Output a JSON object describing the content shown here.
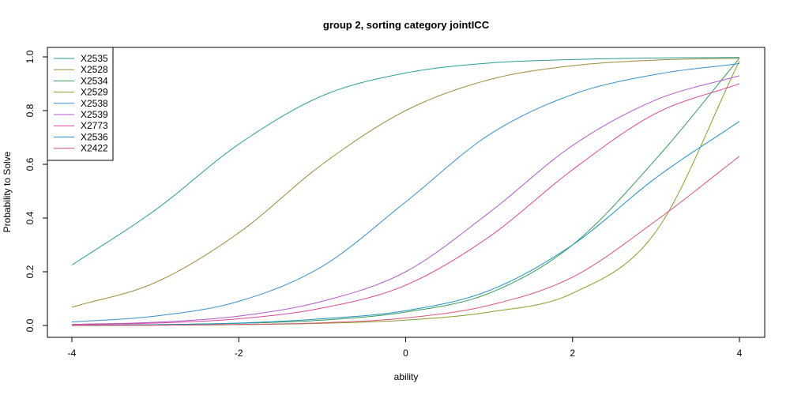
{
  "chart_data": {
    "type": "line",
    "title": "group 2, sorting category jointICC",
    "xlabel": "ability",
    "ylabel": "Probability to Solve",
    "xlim": [
      -4,
      4
    ],
    "ylim": [
      0,
      1
    ],
    "xticks": [
      -4,
      -2,
      0,
      2,
      4
    ],
    "xtick_labels": [
      "-4",
      "-2",
      "0",
      "2",
      "4"
    ],
    "yticks": [
      0,
      0.2,
      0.4,
      0.6,
      0.8,
      1
    ],
    "ytick_labels": [
      "0.0",
      "0.2",
      "0.4",
      "0.6",
      "0.8",
      "1.0"
    ],
    "grid": false,
    "legend_position": "top-left",
    "x": [
      -4,
      -3,
      -2,
      -1,
      0,
      1,
      2,
      3,
      4
    ],
    "series": [
      {
        "name": "X2535",
        "color": "#2A9D8F",
        "values": [
          0.225,
          0.43,
          0.675,
          0.855,
          0.94,
          0.977,
          0.99,
          0.996,
          0.998
        ]
      },
      {
        "name": "X2528",
        "color": "#9C8A3C",
        "values": [
          0.068,
          0.16,
          0.345,
          0.6,
          0.8,
          0.915,
          0.967,
          0.988,
          0.995
        ]
      },
      {
        "name": "X2534",
        "color": "#3A9A5B",
        "values": [
          0.001,
          0.003,
          0.008,
          0.02,
          0.05,
          0.12,
          0.3,
          0.62,
          0.995
        ]
      },
      {
        "name": "X2529",
        "color": "#8C9A2A",
        "values": [
          0.0,
          0.001,
          0.003,
          0.008,
          0.02,
          0.05,
          0.12,
          0.35,
          0.985
        ]
      },
      {
        "name": "X2538",
        "color": "#3A8FC9",
        "values": [
          0.013,
          0.035,
          0.09,
          0.22,
          0.46,
          0.71,
          0.86,
          0.935,
          0.975
        ]
      },
      {
        "name": "X2539",
        "color": "#B05AC9",
        "values": [
          0.004,
          0.012,
          0.035,
          0.09,
          0.2,
          0.42,
          0.67,
          0.84,
          0.93
        ]
      },
      {
        "name": "X2773",
        "color": "#D9479A",
        "values": [
          0.003,
          0.009,
          0.025,
          0.065,
          0.15,
          0.33,
          0.58,
          0.79,
          0.9
        ]
      },
      {
        "name": "X2536",
        "color": "#1F8FC0",
        "values": [
          0.0,
          0.003,
          0.009,
          0.025,
          0.055,
          0.13,
          0.3,
          0.55,
          0.76
        ]
      },
      {
        "name": "X2422",
        "color": "#D65577",
        "values": [
          0.0,
          0.001,
          0.004,
          0.01,
          0.028,
          0.075,
          0.18,
          0.39,
          0.63
        ]
      }
    ]
  }
}
